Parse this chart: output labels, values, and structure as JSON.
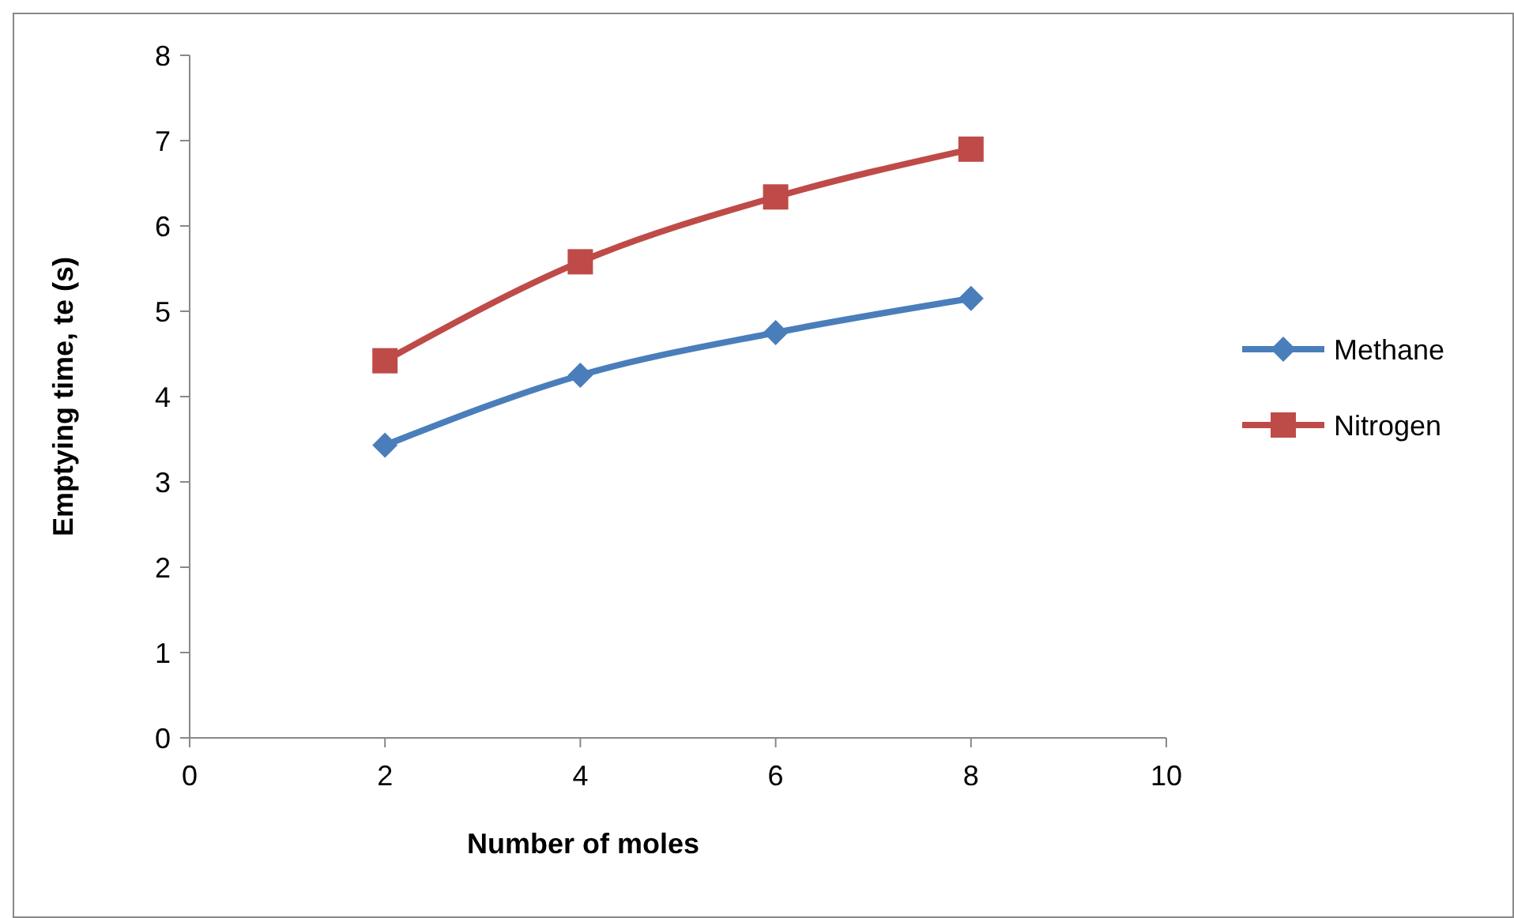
{
  "chart_data": {
    "type": "line",
    "xlabel": "Number of moles",
    "ylabel": "Emptying time, te (s)",
    "xlim": [
      0,
      10
    ],
    "xticks": [
      0,
      2,
      4,
      6,
      8,
      10
    ],
    "ylim": [
      0,
      8
    ],
    "yticks": [
      0,
      1,
      2,
      3,
      4,
      5,
      6,
      7,
      8
    ],
    "grid": false,
    "legend": "right",
    "marker": "diamond",
    "line_style": "solid",
    "series": [
      {
        "name": "Methane",
        "color": "#4a7ebb",
        "x": [
          2,
          4,
          6,
          8
        ],
        "values": [
          3.43,
          4.25,
          4.75,
          5.15
        ],
        "marker": "diamond"
      },
      {
        "name": "Nitrogen",
        "color": "#be4b48",
        "x": [
          2,
          4,
          6,
          8
        ],
        "values": [
          4.42,
          5.58,
          6.34,
          6.9
        ],
        "marker": "square"
      }
    ]
  }
}
